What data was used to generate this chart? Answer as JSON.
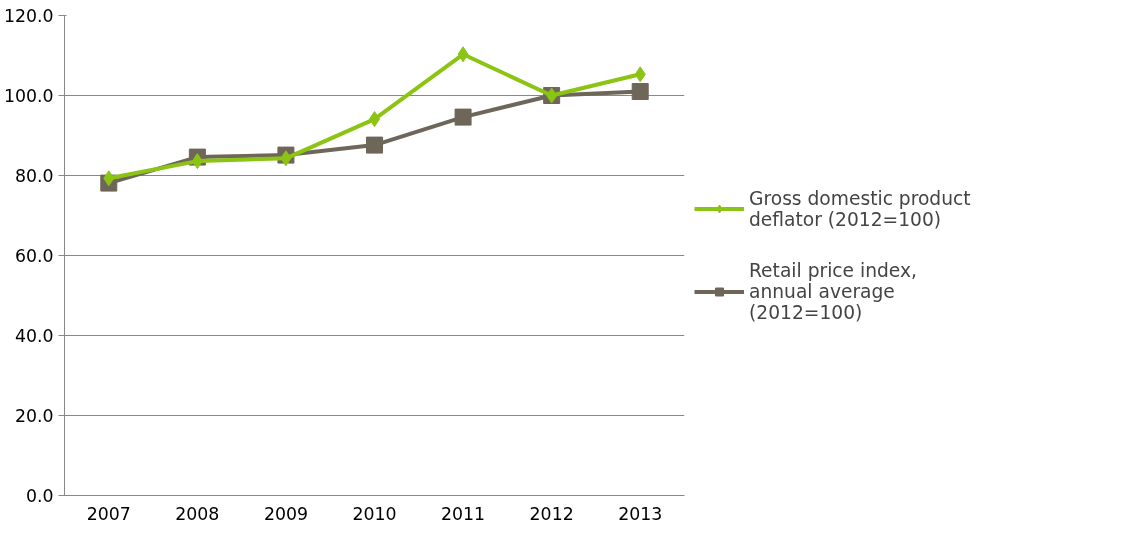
{
  "chart_data": {
    "type": "line",
    "categories": [
      "2007",
      "2008",
      "2009",
      "2010",
      "2011",
      "2012",
      "2013"
    ],
    "series": [
      {
        "name": "Gross domestic product deflator (2012=100)",
        "color": "#8cc414",
        "marker": "diamond",
        "values": [
          79.3,
          83.6,
          84.3,
          94.1,
          110.3,
          100.0,
          105.3
        ]
      },
      {
        "name": "Retail price index, annual average (2012=100)",
        "color": "#6e6658",
        "marker": "square",
        "values": [
          78.1,
          84.6,
          85.1,
          87.6,
          94.6,
          100.0,
          101.0
        ]
      }
    ],
    "ylim": [
      0,
      120
    ],
    "yticks": [
      {
        "value": 0,
        "label": "0.0"
      },
      {
        "value": 20,
        "label": "20.0"
      },
      {
        "value": 40,
        "label": "40.0"
      },
      {
        "value": 60,
        "label": "60.0"
      },
      {
        "value": 80,
        "label": "80.0"
      },
      {
        "value": 100,
        "label": "100.0"
      },
      {
        "value": 120,
        "label": "120.0"
      }
    ],
    "grid": "y",
    "legend": "right",
    "line_style": "solid"
  }
}
